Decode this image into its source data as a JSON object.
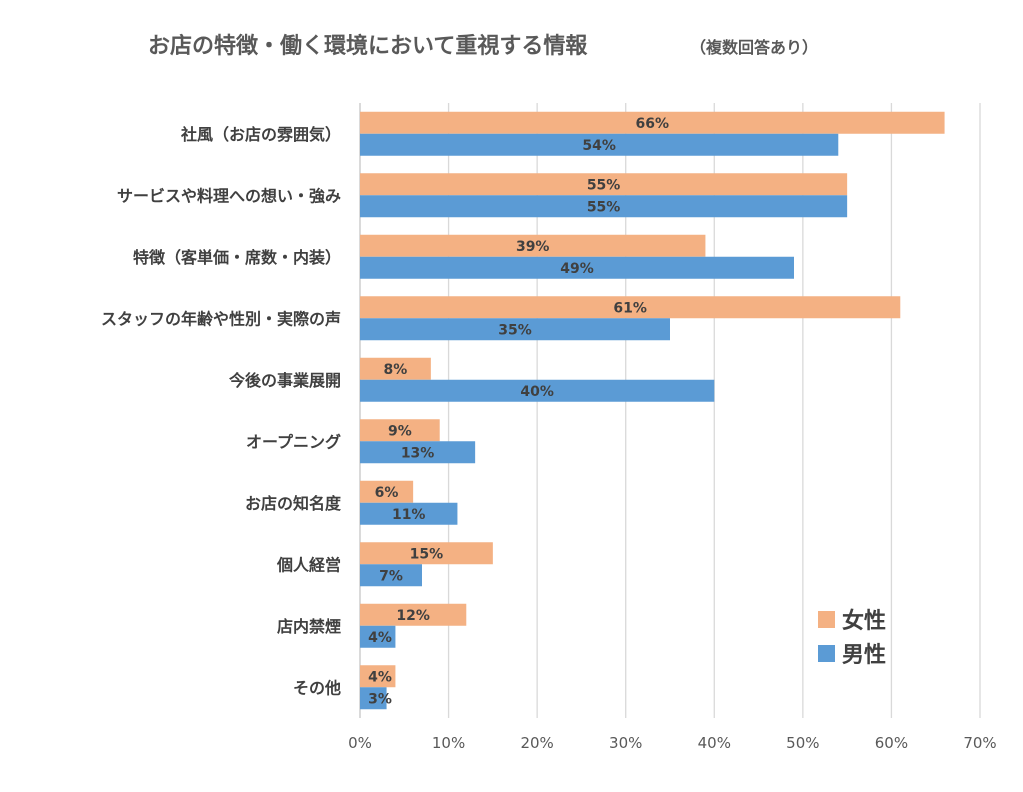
{
  "chart_data": {
    "type": "bar",
    "orientation": "horizontal",
    "title": "お店の特徴・働く環境において重視する情報",
    "subtitle": "（複数回答あり）",
    "categories": [
      "社風（お店の雰囲気）",
      "サービスや料理への想い・強み",
      "特徴（客単価・席数・内装）",
      "スタッフの年齢や性別・実際の声",
      "今後の事業展開",
      "オープニング",
      "お店の知名度",
      "個人経営",
      "店内禁煙",
      "その他"
    ],
    "series": [
      {
        "name": "女性",
        "color": "#F4B183",
        "values": [
          66,
          55,
          39,
          61,
          8,
          9,
          6,
          15,
          12,
          4
        ],
        "labels": [
          "66%",
          "55%",
          "39%",
          "61%",
          "8%",
          "9%",
          "6%",
          "15%",
          "12%",
          "4%"
        ]
      },
      {
        "name": "男性",
        "color": "#5B9BD5",
        "values": [
          54,
          55,
          49,
          35,
          40,
          13,
          11,
          7,
          4,
          3
        ],
        "labels": [
          "54%",
          "55%",
          "49%",
          "35%",
          "40%",
          "13%",
          "11%",
          "7%",
          "4%",
          "3%"
        ]
      }
    ],
    "xlim": [
      0,
      70
    ],
    "xticks": [
      "0%",
      "10%",
      "20%",
      "30%",
      "40%",
      "50%",
      "60%",
      "70%"
    ],
    "grid": true,
    "legend_position": "bottom-right"
  }
}
